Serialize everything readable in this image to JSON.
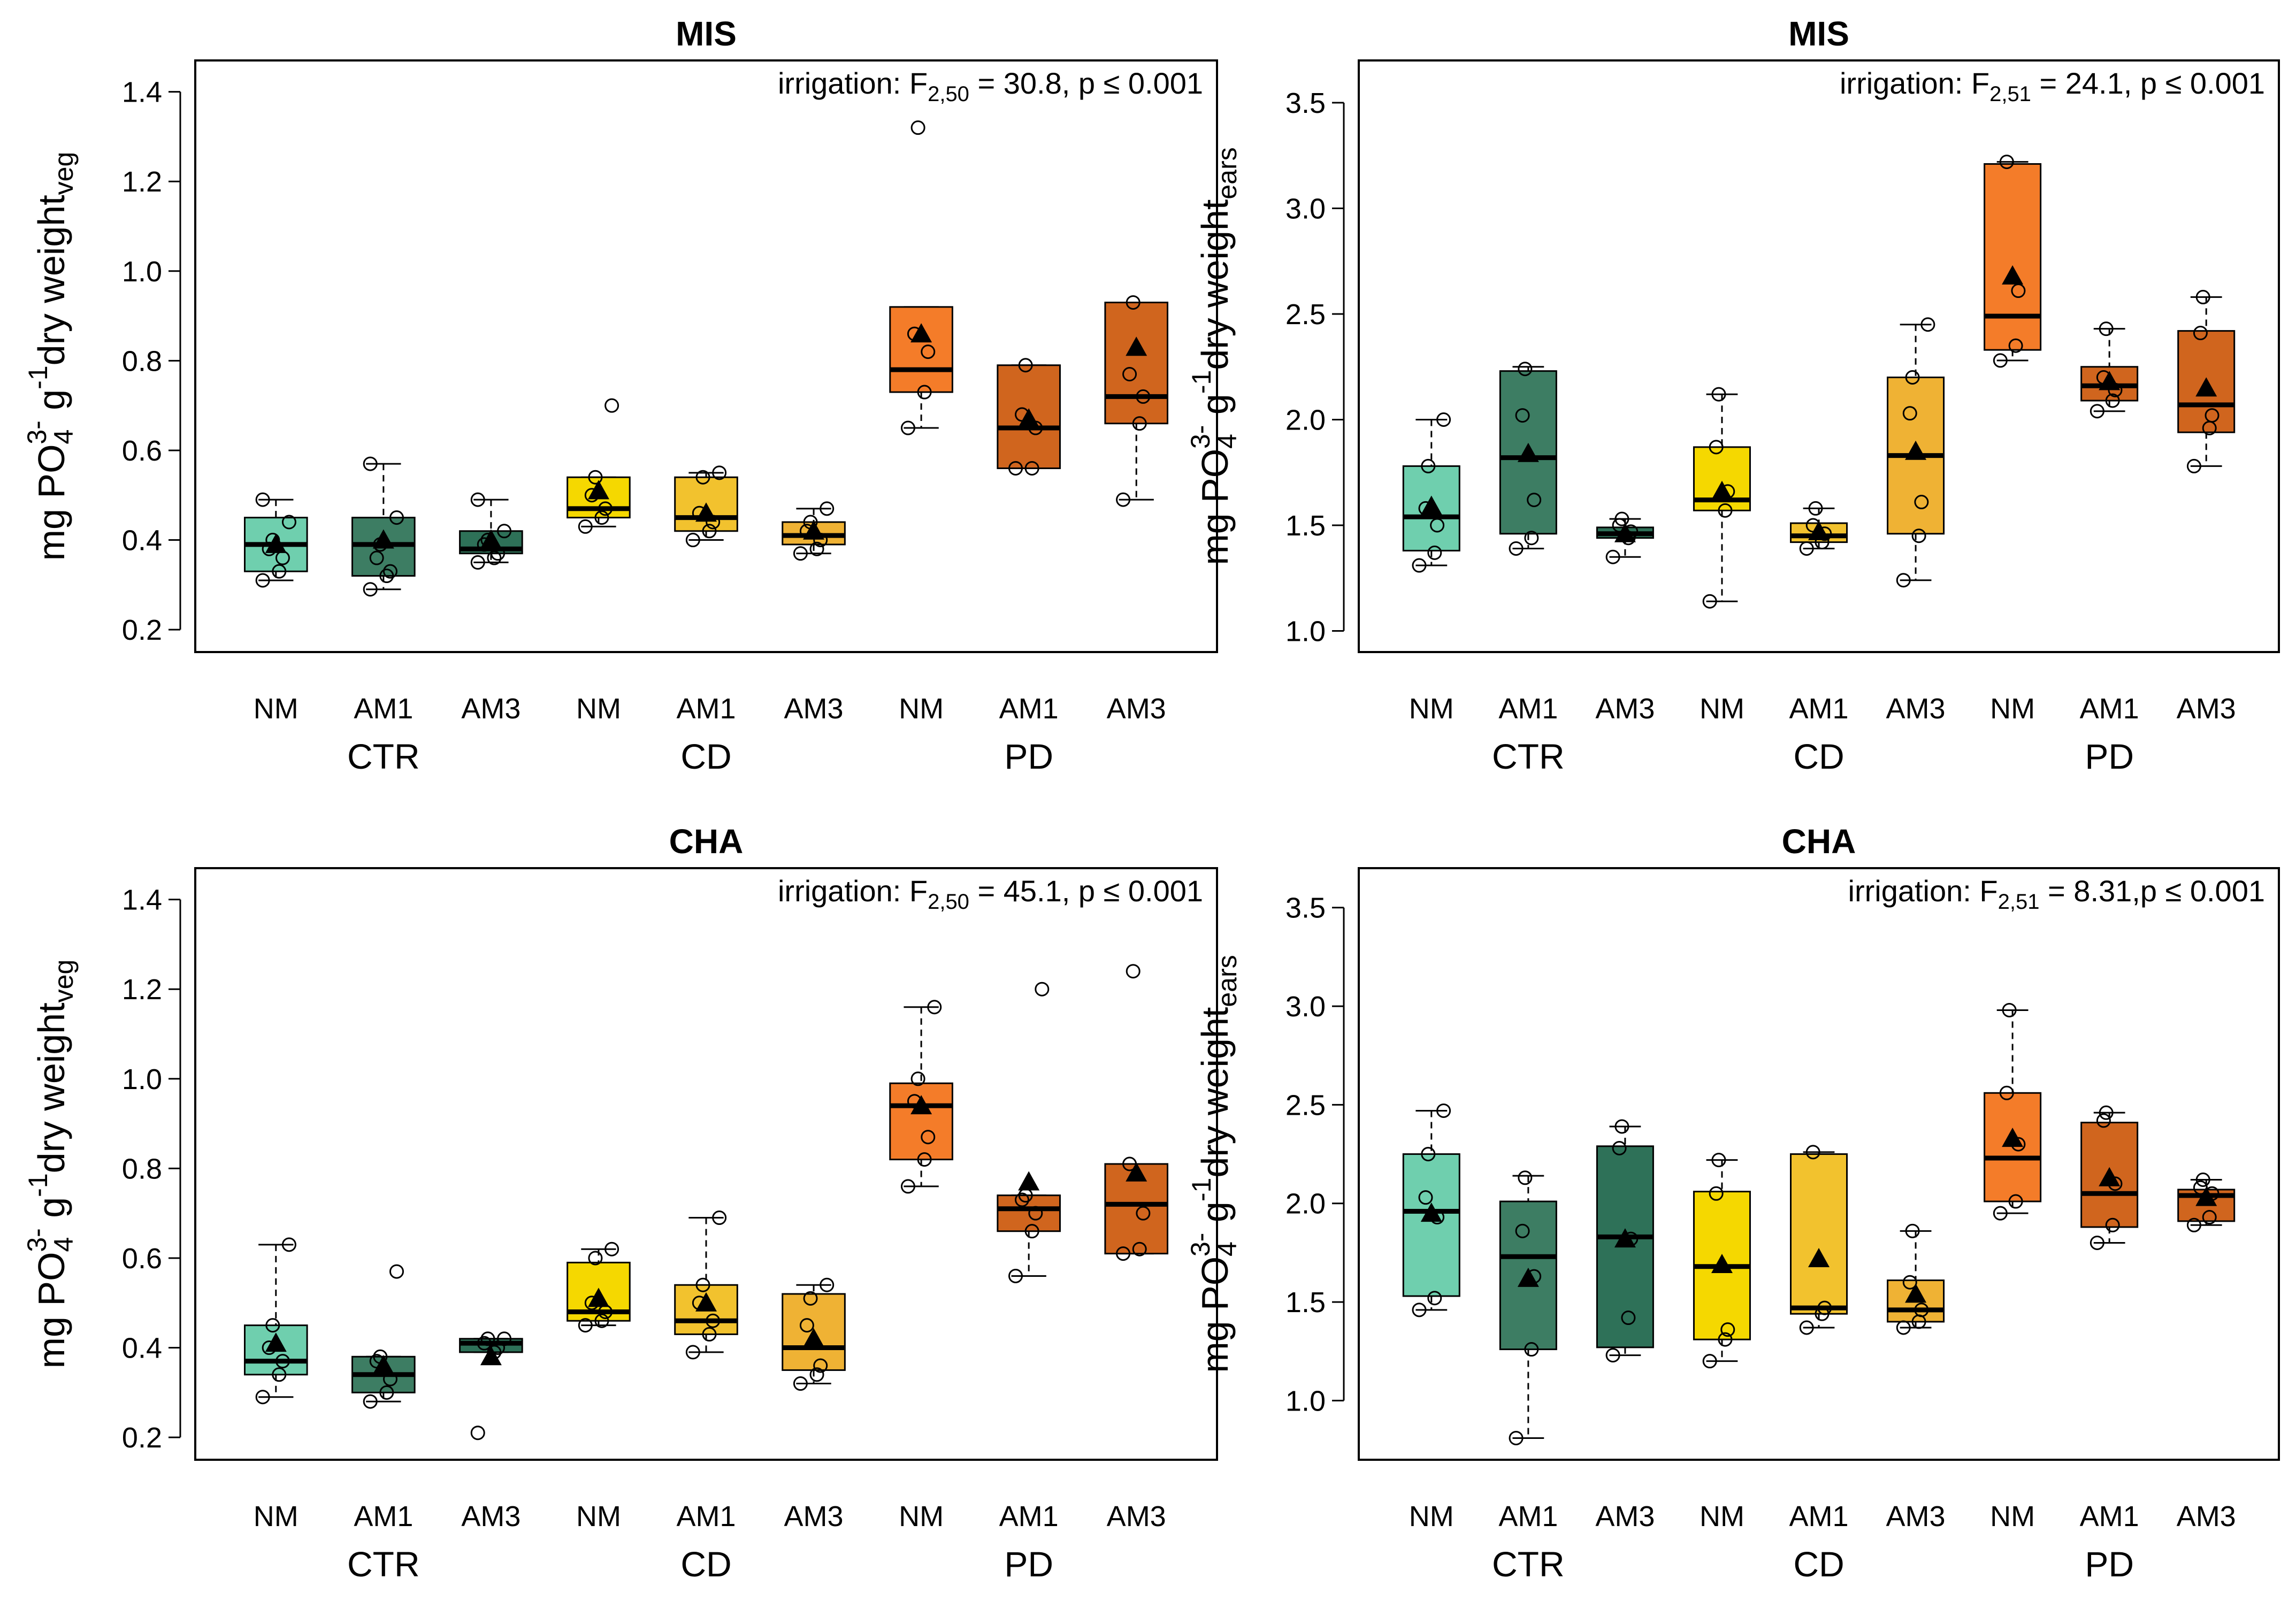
{
  "figure": {
    "x_groups": [
      "CTR",
      "CD",
      "PD"
    ],
    "x_categories": [
      "NM",
      "AM1",
      "AM3",
      "NM",
      "AM1",
      "AM3",
      "NM",
      "AM1",
      "AM3"
    ],
    "box_colors": [
      "#6fcfae",
      "#3d7d63",
      "#2e7158",
      "#f5d800",
      "#f2c22e",
      "#efb234",
      "#f47c29",
      "#d0651e",
      "#d0651e"
    ]
  },
  "chart_data": [
    {
      "type": "box",
      "title": "MIS",
      "ylabel_main": "mg PO",
      "ylabel_sub4": "4",
      "ylabel_sup": "3-",
      "ylabel_g": " g",
      "ylabel_sup1": "-1",
      "ylabel_rest": "dry weight",
      "ylabel_sub": "veg",
      "ylim": [
        0.15,
        1.47
      ],
      "yticks": [
        "0.2",
        "0.4",
        "0.6",
        "0.8",
        "1.0",
        "1.2",
        "1.4"
      ],
      "annotation_pre": "irrigation: F",
      "annotation_sub": "2,50",
      "annotation_post": " = 30.8, p ≤ 0.001",
      "boxes": [
        {
          "group": "CTR",
          "category": "NM",
          "lower_whisker": 0.31,
          "q1": 0.33,
          "median": 0.39,
          "q3": 0.45,
          "upper_whisker": 0.49,
          "mean": 0.39,
          "points": [
            0.31,
            0.33,
            0.36,
            0.38,
            0.4,
            0.44,
            0.49
          ]
        },
        {
          "group": "CTR",
          "category": "AM1",
          "lower_whisker": 0.29,
          "q1": 0.32,
          "median": 0.39,
          "q3": 0.45,
          "upper_whisker": 0.57,
          "mean": 0.4,
          "points": [
            0.29,
            0.32,
            0.33,
            0.36,
            0.39,
            0.45,
            0.57
          ]
        },
        {
          "group": "CTR",
          "category": "AM3",
          "lower_whisker": 0.35,
          "q1": 0.37,
          "median": 0.38,
          "q3": 0.42,
          "upper_whisker": 0.49,
          "mean": 0.4,
          "points": [
            0.35,
            0.36,
            0.37,
            0.39,
            0.4,
            0.42,
            0.49
          ]
        },
        {
          "group": "CD",
          "category": "NM",
          "lower_whisker": 0.43,
          "q1": 0.45,
          "median": 0.47,
          "q3": 0.54,
          "upper_whisker": 0.54,
          "mean": 0.51,
          "points": [
            0.43,
            0.45,
            0.47,
            0.5,
            0.54,
            0.7
          ]
        },
        {
          "group": "CD",
          "category": "AM1",
          "lower_whisker": 0.4,
          "q1": 0.42,
          "median": 0.45,
          "q3": 0.54,
          "upper_whisker": 0.55,
          "mean": 0.46,
          "points": [
            0.4,
            0.42,
            0.44,
            0.46,
            0.54,
            0.55
          ]
        },
        {
          "group": "CD",
          "category": "AM3",
          "lower_whisker": 0.37,
          "q1": 0.39,
          "median": 0.41,
          "q3": 0.44,
          "upper_whisker": 0.47,
          "mean": 0.42,
          "points": [
            0.37,
            0.38,
            0.4,
            0.42,
            0.44,
            0.47
          ]
        },
        {
          "group": "PD",
          "category": "NM",
          "lower_whisker": 0.65,
          "q1": 0.73,
          "median": 0.78,
          "q3": 0.92,
          "upper_whisker": 0.92,
          "mean": 0.86,
          "points": [
            0.65,
            0.73,
            0.82,
            0.86,
            1.32
          ]
        },
        {
          "group": "PD",
          "category": "AM1",
          "lower_whisker": 0.56,
          "q1": 0.56,
          "median": 0.65,
          "q3": 0.79,
          "upper_whisker": 0.79,
          "mean": 0.67,
          "points": [
            0.56,
            0.56,
            0.65,
            0.68,
            0.79
          ]
        },
        {
          "group": "PD",
          "category": "AM3",
          "lower_whisker": 0.49,
          "q1": 0.66,
          "median": 0.72,
          "q3": 0.93,
          "upper_whisker": 0.93,
          "mean": 0.83,
          "points": [
            0.49,
            0.66,
            0.72,
            0.77,
            0.93
          ]
        }
      ]
    },
    {
      "type": "box",
      "title": "MIS",
      "ylabel_main": "mg PO",
      "ylabel_sub4": "4",
      "ylabel_sup": "3-",
      "ylabel_g": " g",
      "ylabel_sup1": "-1",
      "ylabel_rest": "dry weight",
      "ylabel_sub": "ears",
      "ylim": [
        0.9,
        3.7
      ],
      "yticks": [
        "1.0",
        "1.5",
        "2.0",
        "2.5",
        "3.0",
        "3.5"
      ],
      "annotation_pre": "irrigation: F",
      "annotation_sub": "2,51",
      "annotation_post": " = 24.1, p ≤ 0.001",
      "boxes": [
        {
          "group": "CTR",
          "category": "NM",
          "lower_whisker": 1.31,
          "q1": 1.38,
          "median": 1.54,
          "q3": 1.78,
          "upper_whisker": 2.0,
          "mean": 1.59,
          "points": [
            1.31,
            1.37,
            1.5,
            1.58,
            1.78,
            2.0
          ]
        },
        {
          "group": "CTR",
          "category": "AM1",
          "lower_whisker": 1.39,
          "q1": 1.46,
          "median": 1.82,
          "q3": 2.23,
          "upper_whisker": 2.25,
          "mean": 1.84,
          "points": [
            1.39,
            1.44,
            1.62,
            2.02,
            2.24
          ]
        },
        {
          "group": "CTR",
          "category": "AM3",
          "lower_whisker": 1.35,
          "q1": 1.44,
          "median": 1.46,
          "q3": 1.49,
          "upper_whisker": 1.53,
          "mean": 1.46,
          "points": [
            1.35,
            1.44,
            1.47,
            1.5,
            1.53
          ]
        },
        {
          "group": "CD",
          "category": "NM",
          "lower_whisker": 1.14,
          "q1": 1.57,
          "median": 1.62,
          "q3": 1.87,
          "upper_whisker": 2.12,
          "mean": 1.66,
          "points": [
            1.14,
            1.57,
            1.66,
            1.87,
            2.12
          ]
        },
        {
          "group": "CD",
          "category": "AM1",
          "lower_whisker": 1.39,
          "q1": 1.42,
          "median": 1.45,
          "q3": 1.51,
          "upper_whisker": 1.58,
          "mean": 1.47,
          "points": [
            1.39,
            1.42,
            1.46,
            1.5,
            1.58
          ]
        },
        {
          "group": "CD",
          "category": "AM3",
          "lower_whisker": 1.24,
          "q1": 1.46,
          "median": 1.83,
          "q3": 2.2,
          "upper_whisker": 2.45,
          "mean": 1.85,
          "points": [
            1.24,
            1.45,
            1.61,
            2.03,
            2.2,
            2.45
          ]
        },
        {
          "group": "PD",
          "category": "NM",
          "lower_whisker": 2.28,
          "q1": 2.33,
          "median": 2.49,
          "q3": 3.21,
          "upper_whisker": 3.22,
          "mean": 2.68,
          "points": [
            2.28,
            2.35,
            2.61,
            3.22
          ]
        },
        {
          "group": "PD",
          "category": "AM1",
          "lower_whisker": 2.04,
          "q1": 2.09,
          "median": 2.16,
          "q3": 2.25,
          "upper_whisker": 2.43,
          "mean": 2.18,
          "points": [
            2.04,
            2.09,
            2.14,
            2.2,
            2.43
          ]
        },
        {
          "group": "PD",
          "category": "AM3",
          "lower_whisker": 1.78,
          "q1": 1.94,
          "median": 2.07,
          "q3": 2.42,
          "upper_whisker": 2.58,
          "mean": 2.15,
          "points": [
            1.78,
            1.96,
            2.02,
            2.41,
            2.58
          ]
        }
      ]
    },
    {
      "type": "box",
      "title": "CHA",
      "ylabel_main": "mg PO",
      "ylabel_sub4": "4",
      "ylabel_sup": "3-",
      "ylabel_g": " g",
      "ylabel_sup1": "-1",
      "ylabel_rest": "dry weight",
      "ylabel_sub": "veg",
      "ylim": [
        0.15,
        1.47
      ],
      "yticks": [
        "0.2",
        "0.4",
        "0.6",
        "0.8",
        "1.0",
        "1.2",
        "1.4"
      ],
      "annotation_pre": "irrigation: F",
      "annotation_sub": "2,50",
      "annotation_post": " = 45.1, p ≤ 0.001",
      "boxes": [
        {
          "group": "CTR",
          "category": "NM",
          "lower_whisker": 0.29,
          "q1": 0.34,
          "median": 0.37,
          "q3": 0.45,
          "upper_whisker": 0.63,
          "mean": 0.41,
          "points": [
            0.29,
            0.34,
            0.37,
            0.4,
            0.45,
            0.63
          ]
        },
        {
          "group": "CTR",
          "category": "AM1",
          "lower_whisker": 0.28,
          "q1": 0.3,
          "median": 0.34,
          "q3": 0.38,
          "upper_whisker": 0.38,
          "mean": 0.36,
          "points": [
            0.28,
            0.3,
            0.33,
            0.37,
            0.38,
            0.57
          ]
        },
        {
          "group": "CTR",
          "category": "AM3",
          "lower_whisker": 0.39,
          "q1": 0.39,
          "median": 0.41,
          "q3": 0.42,
          "upper_whisker": 0.42,
          "mean": 0.38,
          "points": [
            0.21,
            0.39,
            0.4,
            0.41,
            0.42,
            0.42
          ]
        },
        {
          "group": "CD",
          "category": "NM",
          "lower_whisker": 0.45,
          "q1": 0.46,
          "median": 0.48,
          "q3": 0.59,
          "upper_whisker": 0.62,
          "mean": 0.51,
          "points": [
            0.45,
            0.46,
            0.48,
            0.5,
            0.6,
            0.62
          ]
        },
        {
          "group": "CD",
          "category": "AM1",
          "lower_whisker": 0.39,
          "q1": 0.43,
          "median": 0.46,
          "q3": 0.54,
          "upper_whisker": 0.69,
          "mean": 0.5,
          "points": [
            0.39,
            0.43,
            0.46,
            0.5,
            0.54,
            0.69
          ]
        },
        {
          "group": "CD",
          "category": "AM3",
          "lower_whisker": 0.32,
          "q1": 0.35,
          "median": 0.4,
          "q3": 0.52,
          "upper_whisker": 0.54,
          "mean": 0.42,
          "points": [
            0.32,
            0.34,
            0.36,
            0.45,
            0.51,
            0.54
          ]
        },
        {
          "group": "PD",
          "category": "NM",
          "lower_whisker": 0.76,
          "q1": 0.82,
          "median": 0.94,
          "q3": 0.99,
          "upper_whisker": 1.16,
          "mean": 0.94,
          "points": [
            0.76,
            0.82,
            0.87,
            0.95,
            1.0,
            1.16
          ]
        },
        {
          "group": "PD",
          "category": "AM1",
          "lower_whisker": 0.56,
          "q1": 0.66,
          "median": 0.71,
          "q3": 0.74,
          "upper_whisker": 0.74,
          "mean": 0.77,
          "points": [
            0.56,
            0.66,
            0.7,
            0.73,
            0.74,
            1.2
          ]
        },
        {
          "group": "PD",
          "category": "AM3",
          "lower_whisker": 0.61,
          "q1": 0.61,
          "median": 0.72,
          "q3": 0.81,
          "upper_whisker": 0.81,
          "mean": 0.79,
          "points": [
            0.61,
            0.62,
            0.7,
            0.81,
            1.24
          ]
        }
      ]
    },
    {
      "type": "box",
      "title": "CHA",
      "ylabel_main": "mg PO",
      "ylabel_sub4": "4",
      "ylabel_sup": "3-",
      "ylabel_g": " g",
      "ylabel_sup1": "-1",
      "ylabel_rest": "dry weight",
      "ylabel_sub": "ears",
      "ylim": [
        0.7,
        3.7
      ],
      "yticks": [
        "1.0",
        "1.5",
        "2.0",
        "2.5",
        "3.0",
        "3.5"
      ],
      "annotation_pre": "irrigation: F",
      "annotation_sub": "2,51",
      "annotation_post": " = 8.31,p ≤ 0.001",
      "boxes": [
        {
          "group": "CTR",
          "category": "NM",
          "lower_whisker": 1.46,
          "q1": 1.53,
          "median": 1.96,
          "q3": 2.25,
          "upper_whisker": 2.47,
          "mean": 1.95,
          "points": [
            1.46,
            1.52,
            1.93,
            2.03,
            2.25,
            2.47
          ]
        },
        {
          "group": "CTR",
          "category": "AM1",
          "lower_whisker": 0.81,
          "q1": 1.26,
          "median": 1.73,
          "q3": 2.01,
          "upper_whisker": 2.14,
          "mean": 1.62,
          "points": [
            0.81,
            1.26,
            1.63,
            1.86,
            2.13
          ]
        },
        {
          "group": "CTR",
          "category": "AM3",
          "lower_whisker": 1.23,
          "q1": 1.27,
          "median": 1.83,
          "q3": 2.29,
          "upper_whisker": 2.39,
          "mean": 1.82,
          "points": [
            1.23,
            1.42,
            1.82,
            2.28,
            2.39
          ]
        },
        {
          "group": "CD",
          "category": "NM",
          "lower_whisker": 1.2,
          "q1": 1.31,
          "median": 1.68,
          "q3": 2.06,
          "upper_whisker": 2.22,
          "mean": 1.69,
          "points": [
            1.2,
            1.31,
            1.36,
            2.05,
            2.22
          ]
        },
        {
          "group": "CD",
          "category": "AM1",
          "lower_whisker": 1.37,
          "q1": 1.44,
          "median": 1.47,
          "q3": 2.25,
          "upper_whisker": 2.26,
          "mean": 1.72,
          "points": [
            1.37,
            1.44,
            1.47,
            2.26
          ]
        },
        {
          "group": "CD",
          "category": "AM3",
          "lower_whisker": 1.37,
          "q1": 1.4,
          "median": 1.46,
          "q3": 1.61,
          "upper_whisker": 1.86,
          "mean": 1.54,
          "points": [
            1.37,
            1.4,
            1.46,
            1.6,
            1.86
          ]
        },
        {
          "group": "PD",
          "category": "NM",
          "lower_whisker": 1.95,
          "q1": 2.01,
          "median": 2.23,
          "q3": 2.56,
          "upper_whisker": 2.98,
          "mean": 2.33,
          "points": [
            1.95,
            2.01,
            2.3,
            2.56,
            2.98
          ]
        },
        {
          "group": "PD",
          "category": "AM1",
          "lower_whisker": 1.8,
          "q1": 1.88,
          "median": 2.05,
          "q3": 2.41,
          "upper_whisker": 2.46,
          "mean": 2.13,
          "points": [
            1.8,
            1.89,
            2.1,
            2.42,
            2.46
          ]
        },
        {
          "group": "PD",
          "category": "AM3",
          "lower_whisker": 1.89,
          "q1": 1.91,
          "median": 2.04,
          "q3": 2.07,
          "upper_whisker": 2.12,
          "mean": 2.03,
          "points": [
            1.89,
            1.93,
            2.05,
            2.08,
            2.12
          ]
        }
      ]
    }
  ]
}
